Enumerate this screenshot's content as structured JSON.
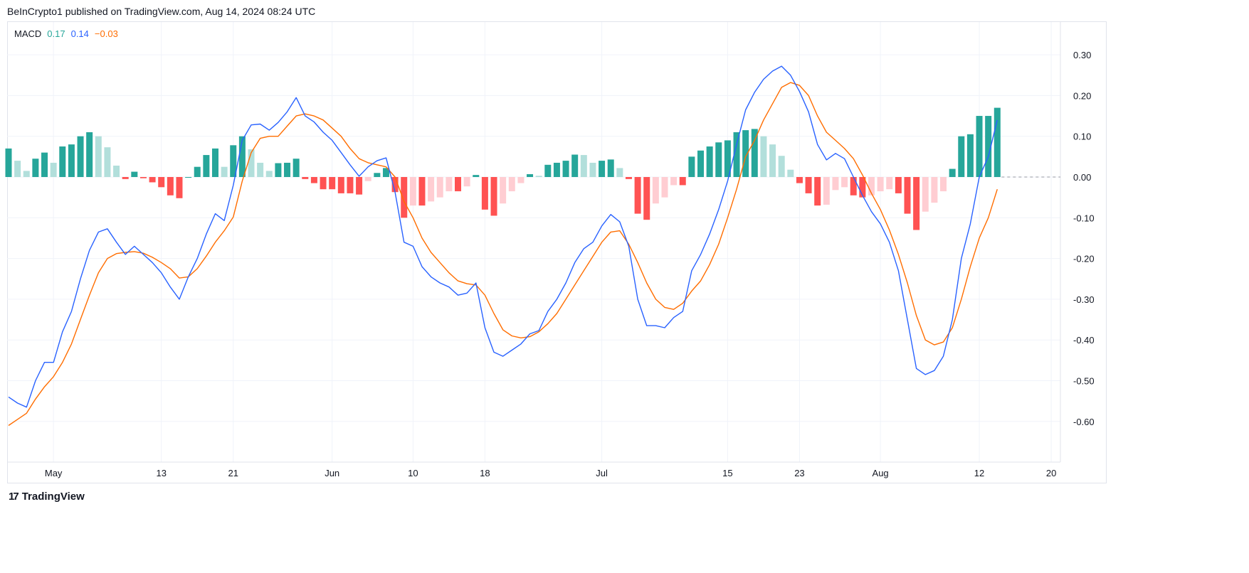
{
  "header": {
    "text": "BeInCrypto1 published on TradingView.com, Aug 14, 2024 08:24 UTC"
  },
  "legend": {
    "name": "MACD",
    "histogram": "0.17",
    "macd": "0.14",
    "signal": "−0.03"
  },
  "footer": {
    "brand": "TradingView",
    "logo_icon": "tradingview-logo-icon"
  },
  "colors": {
    "macd": "#2962ff",
    "signal": "#ff6d00",
    "hist_pos_rising": "#26a69a",
    "hist_pos_falling": "#b2dfdb",
    "hist_neg_falling": "#ff5252",
    "hist_neg_rising": "#ffcdd2",
    "grid": "#f0f3fa"
  },
  "chart_data": {
    "type": "line",
    "title": "MACD",
    "grid": true,
    "ylim": [
      -0.7,
      0.38
    ],
    "y_ticks": [
      "0.30",
      "0.20",
      "0.10",
      "0.00",
      "-0.10",
      "-0.20",
      "-0.30",
      "-0.40",
      "-0.50",
      "-0.60"
    ],
    "y_tick_values": [
      0.3,
      0.2,
      0.1,
      0,
      -0.1,
      -0.2,
      -0.3,
      -0.4,
      -0.5,
      -0.6
    ],
    "x_ticks": [
      {
        "label": "May",
        "date": "2024-05-01"
      },
      {
        "label": "13",
        "date": "2024-05-13"
      },
      {
        "label": "21",
        "date": "2024-05-21"
      },
      {
        "label": "Jun",
        "date": "2024-06-01"
      },
      {
        "label": "10",
        "date": "2024-06-10"
      },
      {
        "label": "18",
        "date": "2024-06-18"
      },
      {
        "label": "Jul",
        "date": "2024-07-01"
      },
      {
        "label": "15",
        "date": "2024-07-15"
      },
      {
        "label": "23",
        "date": "2024-07-23"
      },
      {
        "label": "Aug",
        "date": "2024-08-01"
      },
      {
        "label": "12",
        "date": "2024-08-12"
      },
      {
        "label": "20",
        "date": "2024-08-20"
      }
    ],
    "dates": [
      "2024-04-26",
      "2024-04-27",
      "2024-04-28",
      "2024-04-29",
      "2024-04-30",
      "2024-05-01",
      "2024-05-02",
      "2024-05-03",
      "2024-05-04",
      "2024-05-05",
      "2024-05-06",
      "2024-05-07",
      "2024-05-08",
      "2024-05-09",
      "2024-05-10",
      "2024-05-11",
      "2024-05-12",
      "2024-05-13",
      "2024-05-14",
      "2024-05-15",
      "2024-05-16",
      "2024-05-17",
      "2024-05-18",
      "2024-05-19",
      "2024-05-20",
      "2024-05-21",
      "2024-05-22",
      "2024-05-23",
      "2024-05-24",
      "2024-05-25",
      "2024-05-26",
      "2024-05-27",
      "2024-05-28",
      "2024-05-29",
      "2024-05-30",
      "2024-05-31",
      "2024-06-01",
      "2024-06-02",
      "2024-06-03",
      "2024-06-04",
      "2024-06-05",
      "2024-06-06",
      "2024-06-07",
      "2024-06-08",
      "2024-06-09",
      "2024-06-10",
      "2024-06-11",
      "2024-06-12",
      "2024-06-13",
      "2024-06-14",
      "2024-06-15",
      "2024-06-16",
      "2024-06-17",
      "2024-06-18",
      "2024-06-19",
      "2024-06-20",
      "2024-06-21",
      "2024-06-22",
      "2024-06-23",
      "2024-06-24",
      "2024-06-25",
      "2024-06-26",
      "2024-06-27",
      "2024-06-28",
      "2024-06-29",
      "2024-06-30",
      "2024-07-01",
      "2024-07-02",
      "2024-07-03",
      "2024-07-04",
      "2024-07-05",
      "2024-07-06",
      "2024-07-07",
      "2024-07-08",
      "2024-07-09",
      "2024-07-10",
      "2024-07-11",
      "2024-07-12",
      "2024-07-13",
      "2024-07-14",
      "2024-07-15",
      "2024-07-16",
      "2024-07-17",
      "2024-07-18",
      "2024-07-19",
      "2024-07-20",
      "2024-07-21",
      "2024-07-22",
      "2024-07-23",
      "2024-07-24",
      "2024-07-25",
      "2024-07-26",
      "2024-07-27",
      "2024-07-28",
      "2024-07-29",
      "2024-07-30",
      "2024-07-31",
      "2024-08-01",
      "2024-08-02",
      "2024-08-03",
      "2024-08-04",
      "2024-08-05",
      "2024-08-06",
      "2024-08-07",
      "2024-08-08",
      "2024-08-09",
      "2024-08-10",
      "2024-08-11",
      "2024-08-12",
      "2024-08-13",
      "2024-08-14"
    ],
    "series": [
      {
        "key": "macd",
        "values": [
          -0.54,
          -0.555,
          -0.565,
          -0.5,
          -0.455,
          -0.455,
          -0.38,
          -0.33,
          -0.25,
          -0.18,
          -0.135,
          -0.127,
          -0.16,
          -0.19,
          -0.17,
          -0.19,
          -0.21,
          -0.235,
          -0.27,
          -0.3,
          -0.245,
          -0.2,
          -0.14,
          -0.09,
          -0.107,
          -0.02,
          0.09,
          0.128,
          0.13,
          0.115,
          0.134,
          0.16,
          0.195,
          0.15,
          0.135,
          0.11,
          0.09,
          0.06,
          0.03,
          0.002,
          0.025,
          0.04,
          0.047,
          -0.037,
          -0.16,
          -0.17,
          -0.22,
          -0.245,
          -0.26,
          -0.27,
          -0.29,
          -0.285,
          -0.26,
          -0.37,
          -0.43,
          -0.44,
          -0.425,
          -0.41,
          -0.385,
          -0.377,
          -0.33,
          -0.3,
          -0.26,
          -0.21,
          -0.176,
          -0.16,
          -0.12,
          -0.092,
          -0.11,
          -0.17,
          -0.3,
          -0.365,
          -0.365,
          -0.37,
          -0.345,
          -0.33,
          -0.23,
          -0.19,
          -0.14,
          -0.08,
          -0.01,
          0.08,
          0.165,
          0.208,
          0.24,
          0.26,
          0.272,
          0.25,
          0.21,
          0.16,
          0.08,
          0.042,
          0.058,
          0.045,
          0.0,
          -0.045,
          -0.085,
          -0.115,
          -0.16,
          -0.23,
          -0.35,
          -0.47,
          -0.485,
          -0.475,
          -0.44,
          -0.35,
          -0.2,
          -0.115,
          0.0,
          0.05,
          0.14
        ]
      },
      {
        "key": "signal",
        "values": [
          -0.61,
          -0.595,
          -0.58,
          -0.545,
          -0.515,
          -0.49,
          -0.455,
          -0.41,
          -0.35,
          -0.29,
          -0.235,
          -0.2,
          -0.188,
          -0.185,
          -0.183,
          -0.187,
          -0.197,
          -0.21,
          -0.225,
          -0.248,
          -0.245,
          -0.225,
          -0.194,
          -0.16,
          -0.132,
          -0.098,
          -0.01,
          0.06,
          0.095,
          0.1,
          0.1,
          0.125,
          0.15,
          0.155,
          0.15,
          0.14,
          0.12,
          0.1,
          0.07,
          0.045,
          0.035,
          0.03,
          0.025,
          0.0,
          -0.06,
          -0.1,
          -0.15,
          -0.185,
          -0.21,
          -0.235,
          -0.255,
          -0.262,
          -0.265,
          -0.29,
          -0.335,
          -0.375,
          -0.39,
          -0.395,
          -0.392,
          -0.38,
          -0.36,
          -0.335,
          -0.3,
          -0.265,
          -0.23,
          -0.195,
          -0.16,
          -0.135,
          -0.132,
          -0.165,
          -0.21,
          -0.26,
          -0.3,
          -0.32,
          -0.325,
          -0.31,
          -0.28,
          -0.255,
          -0.215,
          -0.165,
          -0.1,
          -0.03,
          0.05,
          0.09,
          0.14,
          0.18,
          0.22,
          0.232,
          0.225,
          0.2,
          0.15,
          0.11,
          0.09,
          0.07,
          0.045,
          0.005,
          -0.04,
          -0.08,
          -0.13,
          -0.19,
          -0.26,
          -0.34,
          -0.4,
          -0.412,
          -0.405,
          -0.37,
          -0.3,
          -0.22,
          -0.15,
          -0.1,
          -0.03
        ]
      },
      {
        "key": "histogram",
        "values": [
          0.07,
          0.04,
          0.015,
          0.045,
          0.06,
          0.035,
          0.075,
          0.08,
          0.1,
          0.11,
          0.1,
          0.073,
          0.028,
          -0.005,
          0.013,
          -0.003,
          -0.013,
          -0.025,
          -0.045,
          -0.052,
          0.0,
          0.025,
          0.054,
          0.07,
          0.025,
          0.078,
          0.1,
          0.068,
          0.035,
          0.015,
          0.034,
          0.035,
          0.045,
          -0.005,
          -0.015,
          -0.03,
          -0.03,
          -0.04,
          -0.04,
          -0.043,
          -0.01,
          0.01,
          0.022,
          -0.037,
          -0.1,
          -0.07,
          -0.07,
          -0.06,
          -0.05,
          -0.035,
          -0.035,
          -0.023,
          0.005,
          -0.08,
          -0.095,
          -0.065,
          -0.035,
          -0.015,
          0.007,
          0.003,
          0.03,
          0.035,
          0.04,
          0.055,
          0.054,
          0.035,
          0.04,
          0.043,
          0.022,
          -0.005,
          -0.09,
          -0.105,
          -0.065,
          -0.05,
          -0.02,
          -0.02,
          0.05,
          0.065,
          0.075,
          0.085,
          0.09,
          0.11,
          0.115,
          0.118,
          0.1,
          0.08,
          0.052,
          0.018,
          -0.015,
          -0.04,
          -0.07,
          -0.068,
          -0.032,
          -0.025,
          -0.045,
          -0.05,
          -0.045,
          -0.035,
          -0.03,
          -0.04,
          -0.09,
          -0.13,
          -0.085,
          -0.063,
          -0.035,
          0.02,
          0.1,
          0.105,
          0.15,
          0.15,
          0.17
        ]
      }
    ]
  }
}
